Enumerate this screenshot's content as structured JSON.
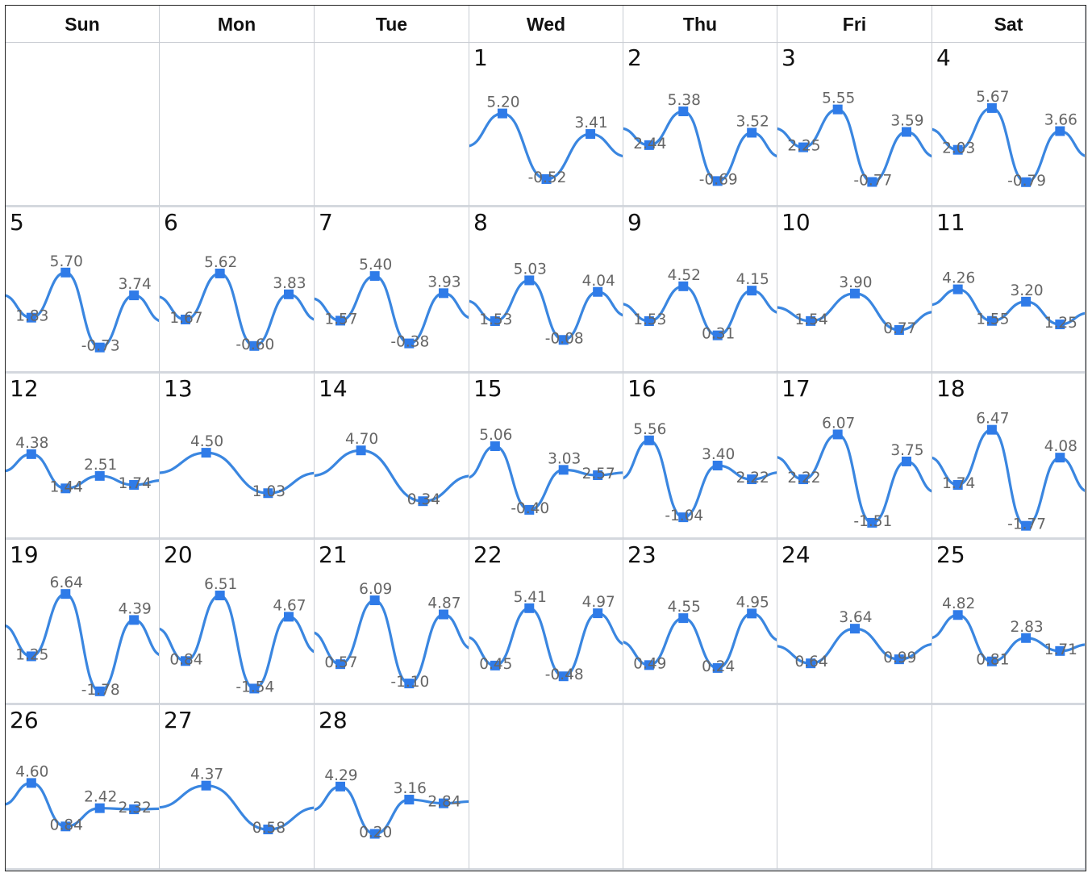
{
  "weekdays": [
    "Sun",
    "Mon",
    "Tue",
    "Wed",
    "Thu",
    "Fri",
    "Sat"
  ],
  "chart_data": {
    "type": "line",
    "title": "",
    "layout": "monthly-calendar",
    "first_weekday_index": 3,
    "days_in_month": 28,
    "line_color": "#3a86e0",
    "marker_color": "#2f7be8",
    "label_color": "#666666",
    "days": [
      {
        "day": 1,
        "values": [
          5.2,
          -0.52,
          3.41
        ]
      },
      {
        "day": 2,
        "values": [
          2.44,
          5.38,
          -0.69,
          3.52
        ]
      },
      {
        "day": 3,
        "values": [
          2.25,
          5.55,
          -0.77,
          3.59
        ]
      },
      {
        "day": 4,
        "values": [
          2.03,
          5.67,
          -0.79,
          3.66
        ]
      },
      {
        "day": 5,
        "values": [
          1.83,
          5.7,
          -0.73,
          3.74
        ]
      },
      {
        "day": 6,
        "values": [
          1.67,
          5.62,
          -0.6,
          3.83
        ]
      },
      {
        "day": 7,
        "values": [
          1.57,
          5.4,
          -0.38,
          3.93
        ]
      },
      {
        "day": 8,
        "values": [
          1.53,
          5.03,
          -0.08,
          4.04
        ]
      },
      {
        "day": 9,
        "values": [
          1.53,
          4.52,
          0.31,
          4.15
        ]
      },
      {
        "day": 10,
        "values": [
          1.54,
          3.9,
          0.77
        ]
      },
      {
        "day": 11,
        "values": [
          4.26,
          1.55,
          3.2,
          1.25
        ]
      },
      {
        "day": 12,
        "values": [
          4.38,
          1.44,
          2.51,
          1.74
        ]
      },
      {
        "day": 13,
        "values": [
          4.5,
          1.03
        ]
      },
      {
        "day": 14,
        "values": [
          4.7,
          0.34
        ]
      },
      {
        "day": 15,
        "values": [
          5.06,
          -0.4,
          3.03,
          2.57
        ]
      },
      {
        "day": 16,
        "values": [
          5.56,
          -1.04,
          3.4,
          2.22
        ]
      },
      {
        "day": 17,
        "values": [
          2.22,
          6.07,
          -1.51,
          3.75
        ]
      },
      {
        "day": 18,
        "values": [
          1.74,
          6.47,
          -1.77,
          4.08
        ]
      },
      {
        "day": 19,
        "values": [
          1.25,
          6.64,
          -1.78,
          4.39
        ]
      },
      {
        "day": 20,
        "values": [
          0.84,
          6.51,
          -1.54,
          4.67
        ]
      },
      {
        "day": 21,
        "values": [
          0.57,
          6.09,
          -1.1,
          4.87
        ]
      },
      {
        "day": 22,
        "values": [
          0.45,
          5.41,
          -0.48,
          4.97
        ]
      },
      {
        "day": 23,
        "values": [
          0.49,
          4.55,
          0.24,
          4.95
        ]
      },
      {
        "day": 24,
        "values": [
          0.64,
          3.64,
          0.99
        ]
      },
      {
        "day": 25,
        "values": [
          4.82,
          0.81,
          2.83,
          1.71
        ]
      },
      {
        "day": 26,
        "values": [
          4.6,
          0.84,
          2.42,
          2.32
        ]
      },
      {
        "day": 27,
        "values": [
          4.37,
          0.58
        ]
      },
      {
        "day": 28,
        "values": [
          4.29,
          0.2,
          3.16,
          2.84
        ]
      }
    ]
  }
}
